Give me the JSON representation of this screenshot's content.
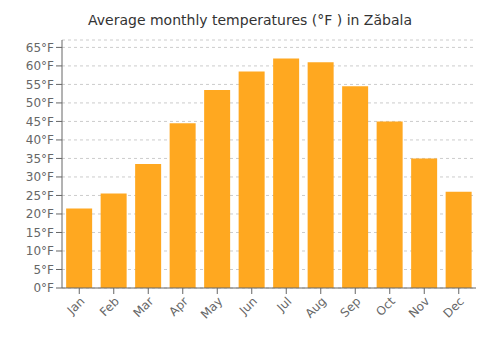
{
  "chart_data": {
    "type": "bar",
    "title": "Average monthly temperatures (°F ) in Zăbala",
    "categories": [
      "Jan",
      "Feb",
      "Mar",
      "Apr",
      "May",
      "Jun",
      "Jul",
      "Aug",
      "Sep",
      "Oct",
      "Nov",
      "Dec"
    ],
    "values": [
      21.5,
      25.5,
      33.5,
      44.5,
      53.5,
      58.5,
      62.0,
      61.0,
      54.5,
      45.0,
      35.0,
      26.0
    ],
    "color": "#FFA820",
    "ylim": [
      0,
      67
    ],
    "yticks": [
      {
        "value": 0,
        "label": "0°F"
      },
      {
        "value": 5,
        "label": "5°F"
      },
      {
        "value": 10,
        "label": "10°F"
      },
      {
        "value": 15,
        "label": "15°F"
      },
      {
        "value": 20,
        "label": "20°F"
      },
      {
        "value": 25,
        "label": "25°F"
      },
      {
        "value": 30,
        "label": "30°F"
      },
      {
        "value": 35,
        "label": "35°F"
      },
      {
        "value": 40,
        "label": "40°F"
      },
      {
        "value": 45,
        "label": "45°F"
      },
      {
        "value": 50,
        "label": "50°F"
      },
      {
        "value": 55,
        "label": "55°F"
      },
      {
        "value": 60,
        "label": "60°F"
      },
      {
        "value": 65,
        "label": "65°F"
      }
    ],
    "grid": true
  }
}
